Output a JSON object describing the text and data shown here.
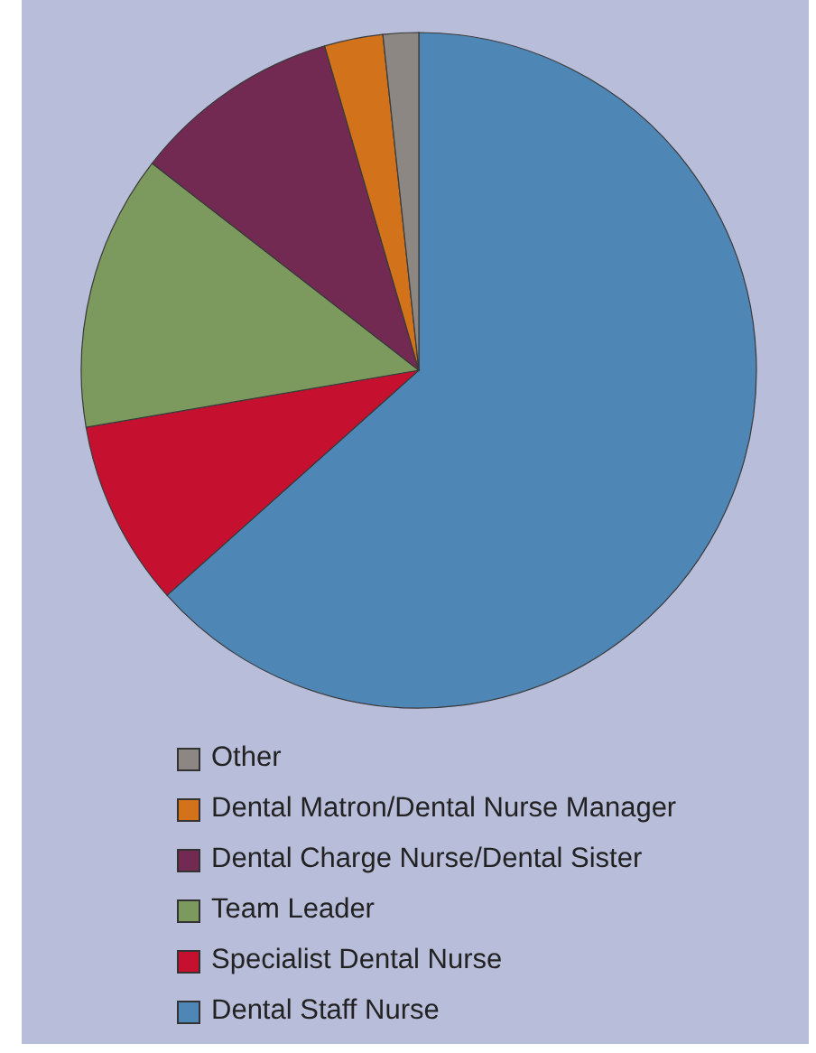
{
  "chart_data": {
    "type": "pie",
    "categories": [
      "Dental Staff Nurse",
      "Specialist Dental Nurse",
      "Team Leader",
      "Dental Charge Nurse/Dental Sister",
      "Dental Matron/Dental Nurse Manager",
      "Other"
    ],
    "values": [
      63.4,
      8.9,
      13.2,
      10.0,
      2.8,
      1.7
    ],
    "colors": [
      "#4e86b6",
      "#c5102f",
      "#7c9a5d",
      "#722a52",
      "#d2731c",
      "#8c8782"
    ],
    "legend": "bottom"
  }
}
